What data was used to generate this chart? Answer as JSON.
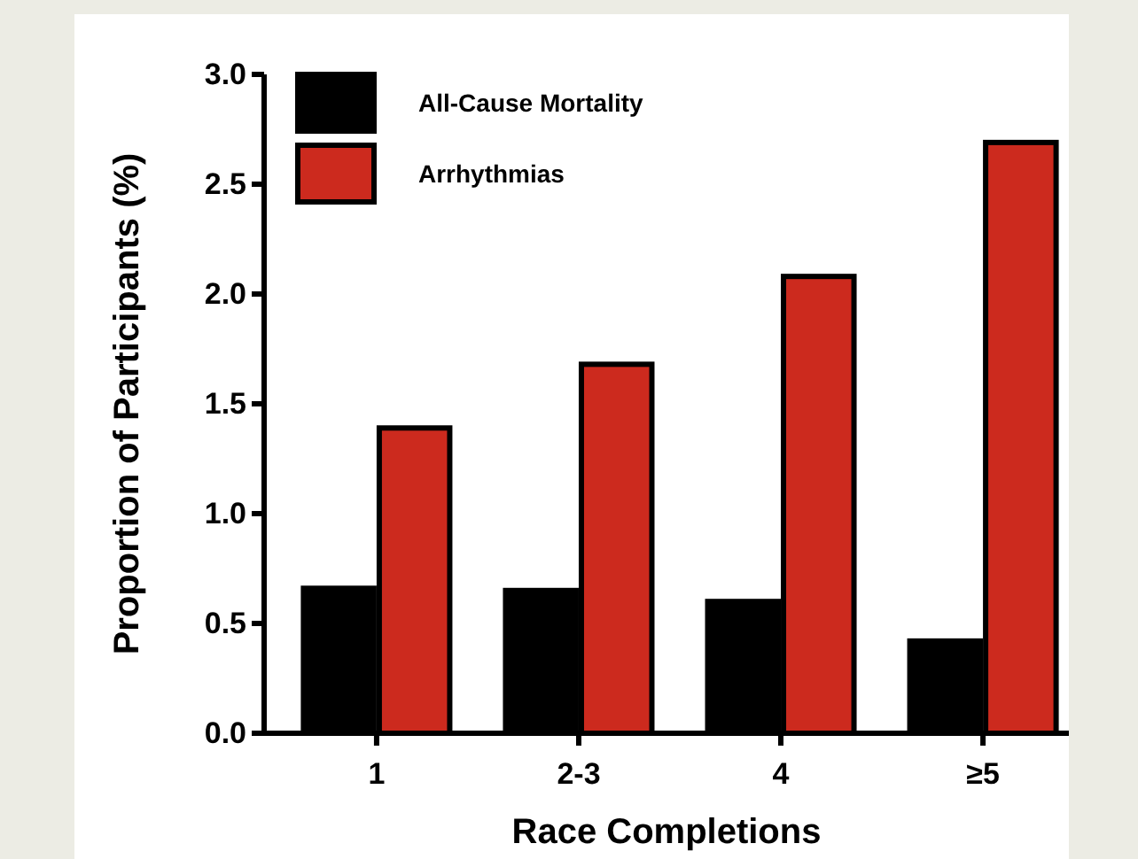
{
  "chart_data": {
    "type": "bar",
    "xlabel": "Race Completions",
    "ylabel": "Proportion of Participants (%)",
    "categories": [
      "1",
      "2-3",
      "4",
      "≥5"
    ],
    "series": [
      {
        "name": "All-Cause Mortality",
        "color": "#000000",
        "values": [
          0.66,
          0.65,
          0.6,
          0.42
        ]
      },
      {
        "name": "Arrhythmias",
        "color": "#cc2a1e",
        "values": [
          1.39,
          1.68,
          2.08,
          2.69
        ]
      }
    ],
    "ylim": [
      0,
      3.0
    ],
    "yticks": [
      {
        "value": 0,
        "label": "0.0"
      },
      {
        "value": 0.5,
        "label": "0.5"
      },
      {
        "value": 1,
        "label": "1.0"
      },
      {
        "value": 1.5,
        "label": "1.5"
      },
      {
        "value": 2,
        "label": "2.0"
      },
      {
        "value": 2.5,
        "label": "2.5"
      },
      {
        "value": 3,
        "label": "3.0"
      }
    ],
    "grid": false,
    "legend": "top left"
  }
}
